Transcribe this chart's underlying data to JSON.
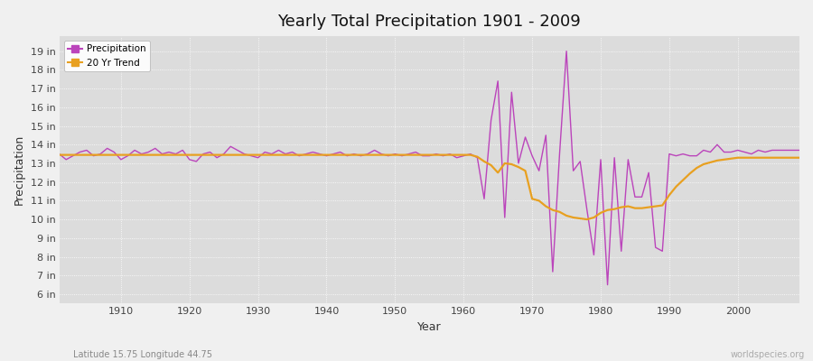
{
  "title": "Yearly Total Precipitation 1901 - 2009",
  "xlabel": "Year",
  "ylabel": "Precipitation",
  "bg_color": "#f0f0f0",
  "plot_bg_color": "#dcdcdc",
  "precip_color": "#bb44bb",
  "trend_color": "#e8a020",
  "footnote_left": "Latitude 15.75 Longitude 44.75",
  "footnote_right": "worldspecies.org",
  "ylim_bottom": 5.5,
  "ylim_top": 19.8,
  "xlim_left": 1901,
  "xlim_right": 2009,
  "ytick_labels": [
    "6 in",
    "7 in",
    "8 in",
    "9 in",
    "10 in",
    "11 in",
    "12 in",
    "13 in",
    "14 in",
    "15 in",
    "16 in",
    "17 in",
    "18 in",
    "19 in"
  ],
  "ytick_values": [
    6,
    7,
    8,
    9,
    10,
    11,
    12,
    13,
    14,
    15,
    16,
    17,
    18,
    19
  ],
  "xtick_values": [
    1910,
    1920,
    1930,
    1940,
    1950,
    1960,
    1970,
    1980,
    1990,
    2000
  ],
  "years": [
    1901,
    1902,
    1903,
    1904,
    1905,
    1906,
    1907,
    1908,
    1909,
    1910,
    1911,
    1912,
    1913,
    1914,
    1915,
    1916,
    1917,
    1918,
    1919,
    1920,
    1921,
    1922,
    1923,
    1924,
    1925,
    1926,
    1927,
    1928,
    1929,
    1930,
    1931,
    1932,
    1933,
    1934,
    1935,
    1936,
    1937,
    1938,
    1939,
    1940,
    1941,
    1942,
    1943,
    1944,
    1945,
    1946,
    1947,
    1948,
    1949,
    1950,
    1951,
    1952,
    1953,
    1954,
    1955,
    1956,
    1957,
    1958,
    1959,
    1960,
    1961,
    1962,
    1963,
    1964,
    1965,
    1966,
    1967,
    1968,
    1969,
    1970,
    1971,
    1972,
    1973,
    1974,
    1975,
    1976,
    1977,
    1978,
    1979,
    1980,
    1981,
    1982,
    1983,
    1984,
    1985,
    1986,
    1987,
    1988,
    1989,
    1990,
    1991,
    1992,
    1993,
    1994,
    1995,
    1996,
    1997,
    1998,
    1999,
    2000,
    2001,
    2002,
    2003,
    2004,
    2005,
    2006,
    2007,
    2008,
    2009
  ],
  "precip": [
    13.5,
    13.2,
    13.4,
    13.6,
    13.7,
    13.4,
    13.5,
    13.8,
    13.6,
    13.2,
    13.4,
    13.7,
    13.5,
    13.6,
    13.8,
    13.5,
    13.6,
    13.5,
    13.7,
    13.2,
    13.1,
    13.5,
    13.6,
    13.3,
    13.5,
    13.9,
    13.7,
    13.5,
    13.4,
    13.3,
    13.6,
    13.5,
    13.7,
    13.5,
    13.6,
    13.4,
    13.5,
    13.6,
    13.5,
    13.4,
    13.5,
    13.6,
    13.4,
    13.5,
    13.4,
    13.5,
    13.7,
    13.5,
    13.4,
    13.5,
    13.4,
    13.5,
    13.6,
    13.4,
    13.4,
    13.5,
    13.4,
    13.5,
    13.3,
    13.4,
    13.5,
    13.3,
    11.1,
    15.3,
    17.4,
    10.1,
    16.8,
    13.0,
    14.4,
    13.4,
    12.6,
    14.5,
    7.2,
    13.5,
    19.0,
    12.6,
    13.1,
    10.5,
    8.1,
    13.2,
    6.5,
    13.3,
    8.3,
    13.2,
    11.2,
    11.2,
    12.5,
    8.5,
    8.3,
    13.5,
    13.4,
    13.5,
    13.4,
    13.4,
    13.7,
    13.6,
    14.0,
    13.6,
    13.6,
    13.7,
    13.6,
    13.5,
    13.7,
    13.6,
    13.7,
    13.7,
    13.7,
    13.7,
    13.7
  ],
  "trend": [
    13.45,
    13.45,
    13.45,
    13.45,
    13.45,
    13.45,
    13.45,
    13.45,
    13.45,
    13.45,
    13.45,
    13.45,
    13.45,
    13.45,
    13.45,
    13.45,
    13.45,
    13.45,
    13.45,
    13.45,
    13.45,
    13.45,
    13.45,
    13.45,
    13.45,
    13.45,
    13.45,
    13.45,
    13.45,
    13.45,
    13.45,
    13.45,
    13.45,
    13.45,
    13.45,
    13.45,
    13.45,
    13.45,
    13.45,
    13.45,
    13.45,
    13.45,
    13.45,
    13.45,
    13.45,
    13.45,
    13.45,
    13.45,
    13.45,
    13.45,
    13.45,
    13.45,
    13.45,
    13.45,
    13.45,
    13.45,
    13.45,
    13.45,
    13.45,
    13.45,
    13.45,
    13.35,
    13.1,
    12.9,
    12.5,
    13.0,
    12.95,
    12.8,
    12.6,
    11.1,
    11.0,
    10.7,
    10.5,
    10.4,
    10.2,
    10.1,
    10.05,
    10.0,
    10.1,
    10.35,
    10.5,
    10.55,
    10.65,
    10.7,
    10.6,
    10.6,
    10.65,
    10.7,
    10.75,
    11.3,
    11.75,
    12.1,
    12.45,
    12.75,
    12.95,
    13.05,
    13.15,
    13.2,
    13.25,
    13.3,
    13.3,
    13.3,
    13.3,
    13.3,
    13.3,
    13.3,
    13.3,
    13.3,
    13.3
  ]
}
